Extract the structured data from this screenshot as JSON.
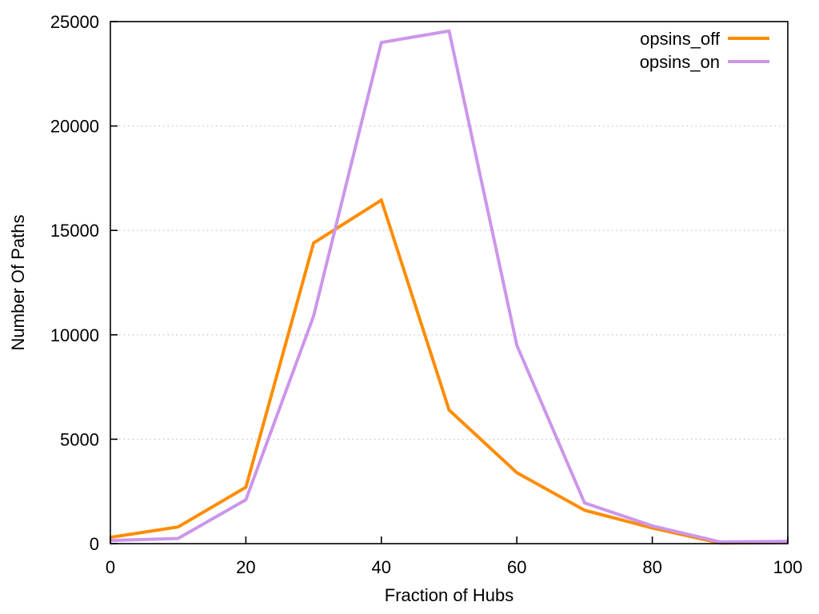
{
  "chart_data": {
    "type": "line",
    "title": "",
    "xlabel": "Fraction of Hubs",
    "ylabel": "Number Of Paths",
    "x": [
      0,
      10,
      20,
      30,
      40,
      50,
      60,
      70,
      80,
      90,
      100
    ],
    "series": [
      {
        "name": "opsins_off",
        "color": "#ff8c00",
        "values": [
          300,
          800,
          2700,
          14400,
          16450,
          6400,
          3400,
          1600,
          750,
          30,
          60
        ]
      },
      {
        "name": "opsins_on",
        "color": "#cc96ea",
        "values": [
          150,
          250,
          2100,
          10900,
          24000,
          24550,
          9500,
          1950,
          850,
          80,
          110
        ]
      }
    ],
    "xlim": [
      0,
      100
    ],
    "ylim": [
      0,
      25000
    ],
    "xticks": [
      0,
      20,
      40,
      60,
      80,
      100
    ],
    "yticks": [
      0,
      5000,
      10000,
      15000,
      20000,
      25000
    ],
    "grid": "horizontal-dotted",
    "grid_color": "#c8c8c8",
    "border_color": "#000000",
    "legend_position": "top-right",
    "line_width": 4
  }
}
